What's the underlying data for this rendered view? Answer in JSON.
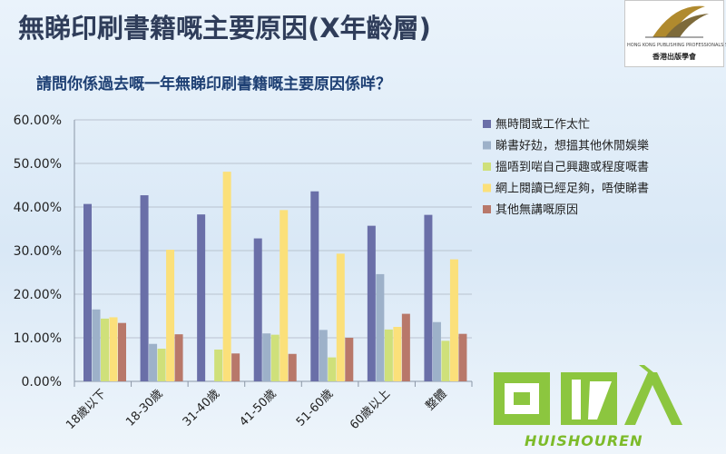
{
  "slide": {
    "title": "無睇印刷書籍嘅主要原因(X年齡層)",
    "subtitle": "請問你係過去嘅一年無睇印刷書籍嘅主要原因係咩？"
  },
  "logo": {
    "org_en": "HONG KONG PUBLISHING PROFESSIONALS SOCIETY",
    "org_zh": "香港出版學會"
  },
  "watermark": {
    "text_zh": "回收",
    "text_en": "HUISHOUREN",
    "color": "#8cc63f"
  },
  "chart_data": {
    "type": "bar",
    "categories": [
      "18歲以下",
      "18-30歲",
      "31-40歲",
      "41-50歲",
      "51-60歲",
      "60歲以上",
      "整體"
    ],
    "ylim": [
      0,
      60
    ],
    "yticks": [
      "0.00%",
      "10.00%",
      "20.00%",
      "30.00%",
      "40.00%",
      "50.00%",
      "60.00%"
    ],
    "grid": true,
    "legend_position": "right",
    "series": [
      {
        "name": "無時間或工作太忙",
        "color": "#6a6fa8",
        "values": [
          40.7,
          42.7,
          38.3,
          32.8,
          43.6,
          35.7,
          38.2
        ]
      },
      {
        "name": "睇書好攰，想搵其他休閒娛樂",
        "color": "#9db1c9",
        "values": [
          16.5,
          8.6,
          0,
          11.0,
          11.8,
          24.6,
          13.6
        ]
      },
      {
        "name": "搵唔到啱自己興趣或程度嘅書",
        "color": "#cfe07a",
        "values": [
          14.4,
          7.5,
          7.3,
          10.7,
          5.5,
          11.9,
          9.3
        ]
      },
      {
        "name": "網上閱讀已經足夠，唔使睇書",
        "color": "#fbe07a",
        "values": [
          14.7,
          30.2,
          48.1,
          39.3,
          29.3,
          12.5,
          28.0
        ]
      },
      {
        "name": "其他無講嘅原因",
        "color": "#b8786a",
        "values": [
          13.4,
          10.8,
          6.4,
          6.3,
          10.0,
          15.5,
          10.9
        ]
      }
    ]
  }
}
